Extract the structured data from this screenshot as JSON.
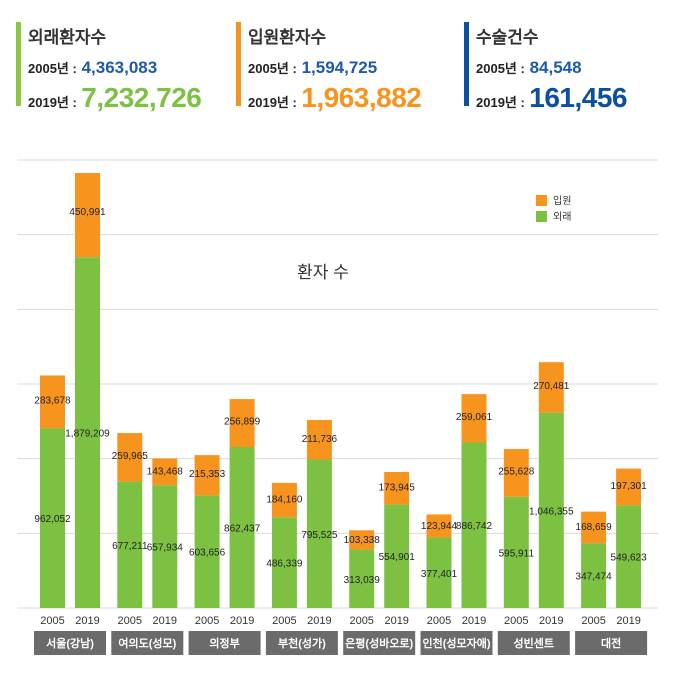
{
  "summary": [
    {
      "title": "외래환자수",
      "y2005_label": "2005년 :",
      "y2005_value": "4,363,083",
      "y2019_label": "2019년 :",
      "y2019_value": "7,232,726",
      "accent": "#8dc63f",
      "value1_color": "#1e5aa8",
      "value2_color": "#7cc142"
    },
    {
      "title": "입원환자수",
      "y2005_label": "2005년 :",
      "y2005_value": "1,594,725",
      "y2019_label": "2019년 :",
      "y2019_value": "1,963,882",
      "accent": "#f7941d",
      "value1_color": "#1e5aa8",
      "value2_color": "#f7941d"
    },
    {
      "title": "수술건수",
      "y2005_label": "2005년 :",
      "y2005_value": "84,548",
      "y2019_label": "2019년 :",
      "y2019_value": "161,456",
      "accent": "#0b4ea2",
      "value1_color": "#1e5aa8",
      "value2_color": "#0b4ea2"
    }
  ],
  "chart_data": {
    "type": "bar",
    "stacked": true,
    "title": "환자 수",
    "legend": [
      "입원",
      "외래"
    ],
    "legend_position": "top-right",
    "colors": {
      "입원": "#f7941d",
      "외래": "#7cc142",
      "group_label_bg": "#6b6b6b",
      "grid": "#d9d9d9"
    },
    "ylim": [
      0,
      2400000
    ],
    "gridlines": true,
    "groups": [
      {
        "name": "서울(강남)",
        "data": [
          {
            "year": "2005",
            "외래": 962052,
            "입원": 283678,
            "외래_label": "962,052",
            "입원_label": "283,678"
          },
          {
            "year": "2019",
            "외래": 1879209,
            "입원": 450991,
            "외래_label": "1,879,209",
            "입원_label": "450,991"
          }
        ]
      },
      {
        "name": "여의도(성모)",
        "data": [
          {
            "year": "2005",
            "외래": 677211,
            "입원": 259965,
            "외래_label": "677,211",
            "입원_label": "259,965"
          },
          {
            "year": "2019",
            "외래": 657934,
            "입원": 143468,
            "외래_label": "657,934",
            "입원_label": "143,468"
          }
        ]
      },
      {
        "name": "의정부",
        "data": [
          {
            "year": "2005",
            "외래": 603656,
            "입원": 215353,
            "외래_label": "603,656",
            "입원_label": "215,353"
          },
          {
            "year": "2019",
            "외래": 862437,
            "입원": 256899,
            "외래_label": "862,437",
            "입원_label": "256,899"
          }
        ]
      },
      {
        "name": "부천(성가)",
        "data": [
          {
            "year": "2005",
            "외래": 486339,
            "입원": 184160,
            "외래_label": "486,339",
            "입원_label": "184,160"
          },
          {
            "year": "2019",
            "외래": 795525,
            "입원": 211736,
            "외래_label": "795,525",
            "입원_label": "211,736"
          }
        ]
      },
      {
        "name": "은평(성바오로)",
        "data": [
          {
            "year": "2005",
            "외래": 313039,
            "입원": 103338,
            "외래_label": "313,039",
            "입원_label": "103,338"
          },
          {
            "year": "2019",
            "외래": 554901,
            "입원": 173945,
            "외래_label": "554,901",
            "입원_label": "173,945"
          }
        ]
      },
      {
        "name": "인천(성모자애)",
        "data": [
          {
            "year": "2005",
            "외래": 377401,
            "입원": 123944,
            "외래_label": "377,401",
            "입원_label": "123,944"
          },
          {
            "year": "2019",
            "외래": 886742,
            "입원": 259061,
            "외래_label": "886,742",
            "입원_label": "259,061"
          }
        ]
      },
      {
        "name": "성빈센트",
        "data": [
          {
            "year": "2005",
            "외래": 595911,
            "입원": 255628,
            "외래_label": "595,911",
            "입원_label": "255,628"
          },
          {
            "year": "2019",
            "외래": 1046355,
            "입원": 270481,
            "외래_label": "1,046,355",
            "입원_label": "270,481"
          }
        ]
      },
      {
        "name": "대전",
        "data": [
          {
            "year": "2005",
            "외래": 347474,
            "입원": 168659,
            "외래_label": "347,474",
            "입원_label": "168,659"
          },
          {
            "year": "2019",
            "외래": 549623,
            "입원": 197301,
            "외래_label": "549,623",
            "입원_label": "197,301"
          }
        ]
      }
    ]
  }
}
